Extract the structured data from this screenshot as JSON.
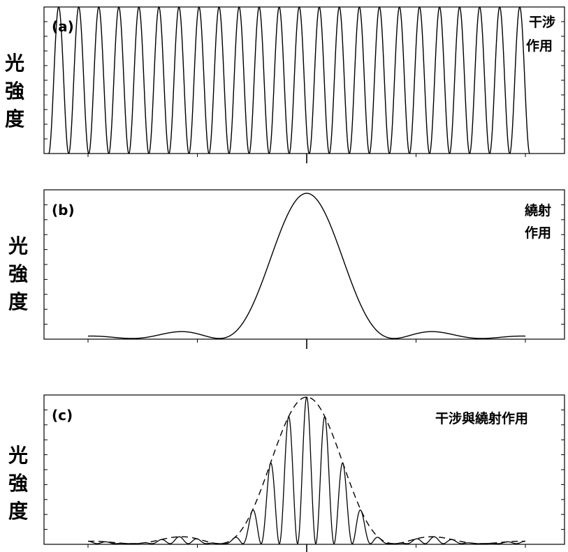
{
  "chart_data": [
    {
      "type": "line",
      "panel_label": "(a)",
      "annotation": [
        "干涉",
        "作用"
      ],
      "ylabel": [
        "光",
        "強",
        "度"
      ],
      "curve": "interference",
      "fringe_count": 24,
      "x_range": [
        -2.95,
        2.55
      ],
      "xlim": [
        -3,
        3
      ],
      "ylim": [
        0,
        1
      ],
      "series": [
        {
          "style": "solid",
          "color": "#000000"
        }
      ]
    },
    {
      "type": "line",
      "panel_label": "(b)",
      "annotation": [
        "繞射",
        "作用"
      ],
      "ylabel": [
        "光",
        "強",
        "度"
      ],
      "curve": "diffraction",
      "x_range": [
        -2.5,
        2.5
      ],
      "xlim": [
        -3,
        3
      ],
      "ylim": [
        0,
        1
      ],
      "series": [
        {
          "style": "solid",
          "color": "#000000"
        }
      ]
    },
    {
      "type": "line",
      "panel_label": "(c)",
      "annotation": [
        "干涉與繞射作用"
      ],
      "ylabel": [
        "光",
        "強",
        "度"
      ],
      "curve": "interference-diffraction",
      "fringe_count": 24,
      "x_range": [
        -2.5,
        2.5
      ],
      "xlim": [
        -3,
        3
      ],
      "ylim": [
        0,
        1
      ],
      "series": [
        {
          "style": "solid",
          "color": "#000000"
        },
        {
          "style": "dashed",
          "color": "#000000"
        }
      ]
    }
  ]
}
